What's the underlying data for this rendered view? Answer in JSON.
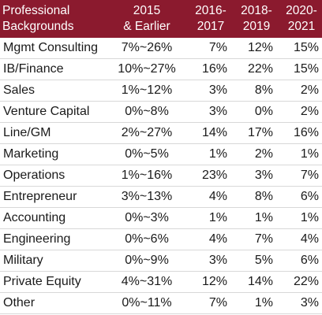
{
  "header": {
    "label_line1": "Professional",
    "label_line2": "Backgrounds",
    "col1_line1": "2015",
    "col1_line2": "& Earlier",
    "col2_line1": "2016-",
    "col2_line2": "2017",
    "col3_line1": "2018-",
    "col3_line2": "2019",
    "col4_line1": "2020-",
    "col4_line2": "2021"
  },
  "rows": [
    {
      "label": "Mgmt Consulting",
      "c1": "7%~26%",
      "c2": "7%",
      "c3": "12%",
      "c4": "15%"
    },
    {
      "label": "IB/Finance",
      "c1": "10%~27%",
      "c2": "16%",
      "c3": "22%",
      "c4": "15%"
    },
    {
      "label": "Sales",
      "c1": "1%~12%",
      "c2": "3%",
      "c3": "8%",
      "c4": "2%"
    },
    {
      "label": "Venture Capital",
      "c1": "0%~8%",
      "c2": "3%",
      "c3": "0%",
      "c4": "2%"
    },
    {
      "label": "Line/GM",
      "c1": "2%~27%",
      "c2": "14%",
      "c3": "17%",
      "c4": "16%"
    },
    {
      "label": "Marketing",
      "c1": "0%~5%",
      "c2": "1%",
      "c3": "2%",
      "c4": "1%"
    },
    {
      "label": "Operations",
      "c1": "1%~16%",
      "c2": "23%",
      "c3": "3%",
      "c4": "7%"
    },
    {
      "label": "Entrepreneur",
      "c1": "3%~13%",
      "c2": "4%",
      "c3": "8%",
      "c4": "6%"
    },
    {
      "label": "Accounting",
      "c1": "0%~3%",
      "c2": "1%",
      "c3": "1%",
      "c4": "1%"
    },
    {
      "label": "Engineering",
      "c1": "0%~6%",
      "c2": "4%",
      "c3": "7%",
      "c4": "4%"
    },
    {
      "label": "Military",
      "c1": "0%~9%",
      "c2": "3%",
      "c3": "5%",
      "c4": "6%"
    },
    {
      "label": "Private Equity",
      "c1": "4%~31%",
      "c2": "12%",
      "c3": "14%",
      "c4": "22%"
    },
    {
      "label": "Other",
      "c1": "0%~11%",
      "c2": "7%",
      "c3": "1%",
      "c4": "3%"
    }
  ],
  "colors": {
    "header_bg": "#8b1a2e",
    "header_text": "#ffffff",
    "body_text": "#1a1a1a"
  }
}
